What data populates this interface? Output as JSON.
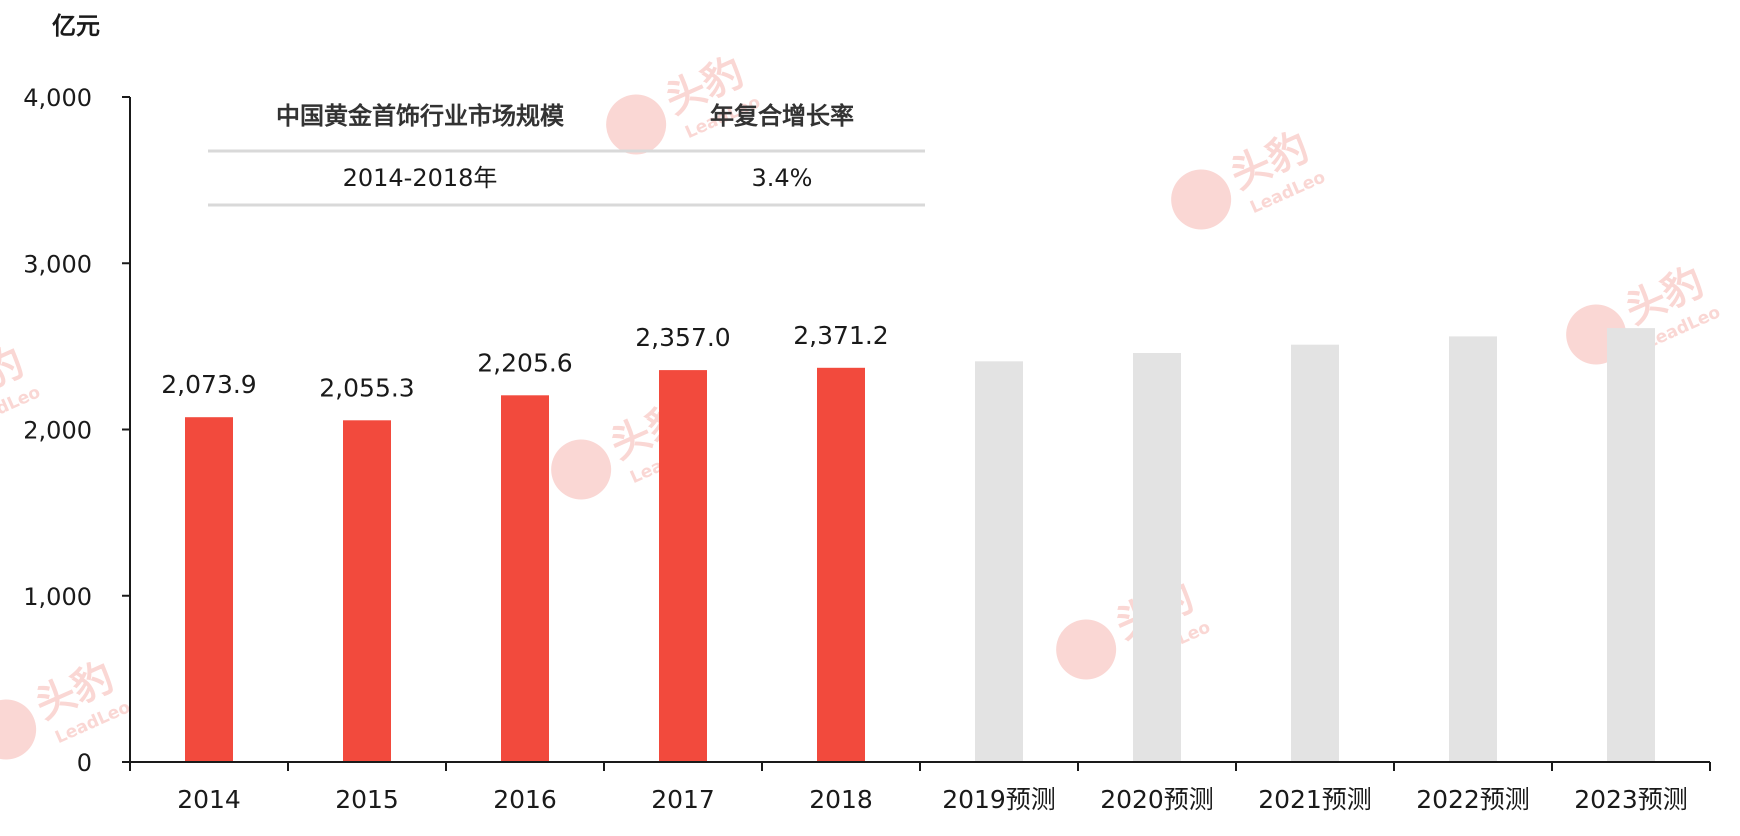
{
  "colors": {
    "actual_bar": "#f24a3d",
    "forecast_bar": "#e3e3e3",
    "axis": "#1a1a1a",
    "table_rule": "#d9d9d9",
    "watermark": "#f6b7b1"
  },
  "chart_data": {
    "type": "bar",
    "unit_label": "亿元",
    "categories": [
      "2014",
      "2015",
      "2016",
      "2017",
      "2018",
      "2019预测",
      "2020预测",
      "2021预测",
      "2022预测",
      "2023预测"
    ],
    "series": [
      {
        "values": [
          2073.9,
          2055.3,
          2205.6,
          2357.0,
          2371.2,
          2410,
          2460,
          2510,
          2560,
          2610
        ],
        "forecast_flags": [
          false,
          false,
          false,
          false,
          false,
          true,
          true,
          true,
          true,
          true
        ]
      }
    ],
    "data_labels": [
      "2,073.9",
      "2,055.3",
      "2,205.6",
      "2,357.0",
      "2,371.2",
      "",
      "",
      "",
      "",
      ""
    ],
    "ylim": [
      0,
      4000
    ],
    "yticks": [
      0,
      1000,
      2000,
      3000,
      4000
    ],
    "ytick_labels": [
      "0",
      "1,000",
      "2,000",
      "3,000",
      "4,000"
    ],
    "grid": false,
    "legend": "none"
  },
  "inset_table": {
    "headers": [
      "中国黄金首饰行业市场规模",
      "年复合增长率"
    ],
    "rows": [
      [
        "2014-2018年",
        "3.4%"
      ]
    ]
  },
  "watermark": {
    "text_cn": "头豹",
    "text_en": "LeadLeo",
    "icon": "leopard-head-icon"
  }
}
